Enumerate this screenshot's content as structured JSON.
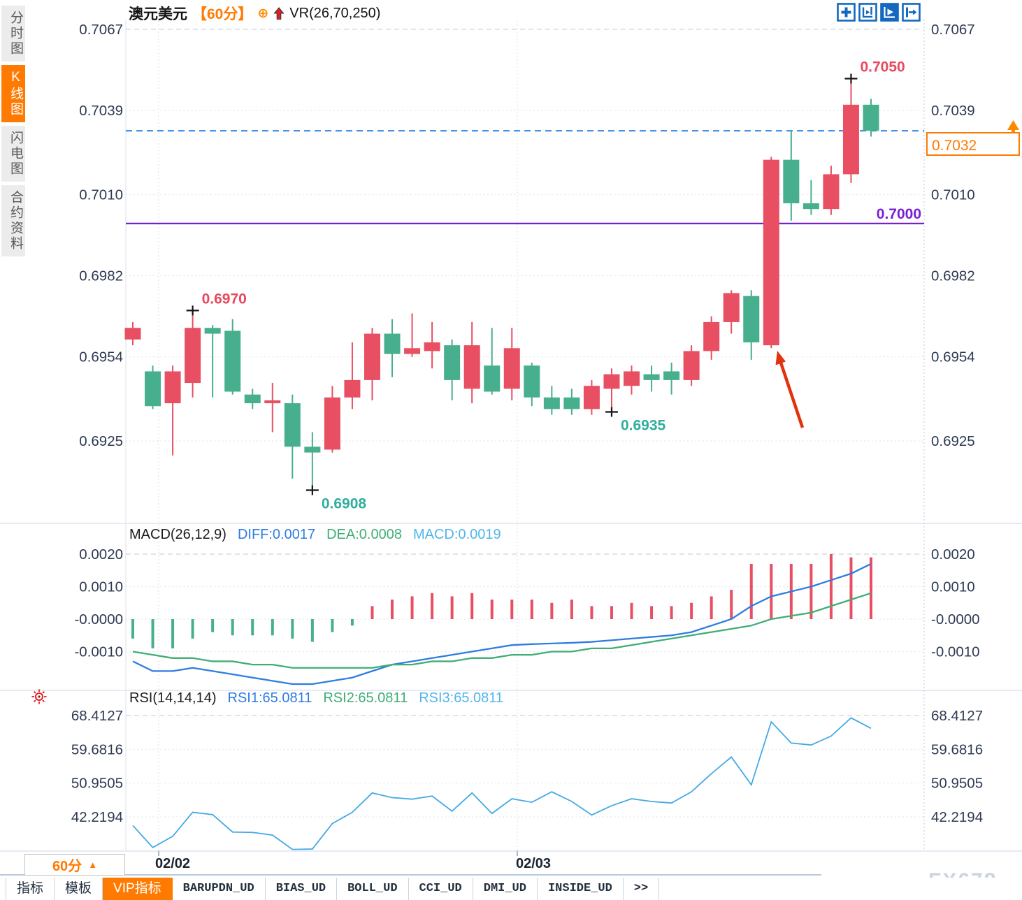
{
  "sidebar": {
    "tabs": [
      {
        "label": "分时图",
        "active": false
      },
      {
        "label": "K线图",
        "active": true
      },
      {
        "label": "闪电图",
        "active": false
      },
      {
        "label": "合约资料",
        "active": false
      }
    ]
  },
  "header": {
    "symbol": "澳元美元",
    "period": "【60分】",
    "plus_icon": "⊕",
    "indicator": "VR(26,70,250)"
  },
  "toolbar": {
    "icons": [
      "move-icon",
      "fit-scale-icon",
      "auto-scale-icon",
      "goto-latest-icon"
    ]
  },
  "colors": {
    "up_candle": "#e84f63",
    "down_candle": "#47af8d",
    "accent_orange": "#ff7a00",
    "support_purple": "#7a1fd0",
    "current_price_blue": "#1e7ae0",
    "diff_blue": "#2e7de0",
    "dea_green": "#3fae75",
    "macd_cyan": "#52b5ea",
    "rsi_line_blue": "#45a9e3",
    "axis_text": "#2e3a52",
    "annotation_red": "#e8495e",
    "annotation_teal": "#2fae9b",
    "arrow_red": "#e0330e"
  },
  "chart_data": {
    "type": "candlestick",
    "title": "澳元美元",
    "interval": "60分",
    "main": {
      "ylabels": [
        "0.7067",
        "0.7039",
        "0.7010",
        "0.6982",
        "0.6954",
        "0.6925"
      ],
      "yvalues": [
        0.7067,
        0.7039,
        0.701,
        0.6982,
        0.6954,
        0.6925
      ],
      "candles": [
        [
          0.696,
          0.6966,
          0.6958,
          0.6964
        ],
        [
          0.6949,
          0.6951,
          0.6936,
          0.6937
        ],
        [
          0.6938,
          0.6951,
          0.692,
          0.6949
        ],
        [
          0.6945,
          0.697,
          0.694,
          0.6964
        ],
        [
          0.6964,
          0.6965,
          0.694,
          0.6962
        ],
        [
          0.6963,
          0.6967,
          0.6941,
          0.6942
        ],
        [
          0.6941,
          0.6943,
          0.6936,
          0.6938
        ],
        [
          0.6938,
          0.6945,
          0.6928,
          0.6939
        ],
        [
          0.6938,
          0.6941,
          0.6912,
          0.6923
        ],
        [
          0.6923,
          0.6928,
          0.6908,
          0.6921
        ],
        [
          0.6922,
          0.6944,
          0.6921,
          0.694
        ],
        [
          0.694,
          0.6959,
          0.6936,
          0.6946
        ],
        [
          0.6946,
          0.6964,
          0.6939,
          0.6962
        ],
        [
          0.6962,
          0.6967,
          0.6947,
          0.6955
        ],
        [
          0.6955,
          0.6969,
          0.6954,
          0.6957
        ],
        [
          0.6956,
          0.6966,
          0.695,
          0.6959
        ],
        [
          0.6958,
          0.696,
          0.6939,
          0.6946
        ],
        [
          0.6943,
          0.6966,
          0.6938,
          0.6958
        ],
        [
          0.6951,
          0.6964,
          0.6941,
          0.6942
        ],
        [
          0.6943,
          0.6964,
          0.6939,
          0.6957
        ],
        [
          0.6951,
          0.6952,
          0.6937,
          0.694
        ],
        [
          0.694,
          0.6944,
          0.6934,
          0.6936
        ],
        [
          0.694,
          0.6943,
          0.6934,
          0.6936
        ],
        [
          0.6936,
          0.6946,
          0.6934,
          0.6944
        ],
        [
          0.6943,
          0.695,
          0.6935,
          0.6948
        ],
        [
          0.6944,
          0.6951,
          0.6941,
          0.6949
        ],
        [
          0.6948,
          0.6951,
          0.6942,
          0.6946
        ],
        [
          0.6949,
          0.6952,
          0.6941,
          0.6946
        ],
        [
          0.6946,
          0.6958,
          0.6944,
          0.6956
        ],
        [
          0.6956,
          0.6968,
          0.6953,
          0.6966
        ],
        [
          0.6966,
          0.6977,
          0.6962,
          0.6976
        ],
        [
          0.6975,
          0.6977,
          0.6953,
          0.6959
        ],
        [
          0.6958,
          0.7023,
          0.6957,
          0.7022
        ],
        [
          0.7022,
          0.7032,
          0.7001,
          0.7007
        ],
        [
          0.7007,
          0.7015,
          0.7003,
          0.7005
        ],
        [
          0.7005,
          0.702,
          0.7003,
          0.7017
        ],
        [
          0.7017,
          0.705,
          0.7014,
          0.7041
        ],
        [
          0.7041,
          0.7043,
          0.703,
          0.7032
        ]
      ],
      "current_price": 0.7032,
      "current_price_label": "0.7032",
      "support_line": {
        "value": 0.7,
        "label": "0.7000"
      },
      "swing_labels": [
        {
          "index": 3,
          "type": "high",
          "price": 0.697,
          "label": "0.6970"
        },
        {
          "index": 9,
          "type": "low",
          "price": 0.6908,
          "label": "0.6908"
        },
        {
          "index": 24,
          "type": "low",
          "price": 0.6935,
          "label": "0.6935"
        },
        {
          "index": 36,
          "type": "high",
          "price": 0.705,
          "label": "0.7050"
        }
      ]
    },
    "macd": {
      "title": "MACD(26,12,9)",
      "readouts": [
        "DIFF:0.0017",
        "DEA:0.0008",
        "MACD:0.0019"
      ],
      "ylabels": [
        "0.0020",
        "0.0010",
        "-0.0000",
        "-0.0010"
      ],
      "yvalues": [
        0.002,
        0.001,
        0.0,
        -0.001
      ],
      "hist": [
        -0.0006,
        -0.0009,
        -0.0009,
        -0.0006,
        -0.0004,
        -0.0005,
        -0.0005,
        -0.0005,
        -0.0006,
        -0.0007,
        -0.0004,
        -0.0002,
        0.0004,
        0.0006,
        0.0007,
        0.0008,
        0.0007,
        0.0008,
        0.0006,
        0.0006,
        0.0006,
        0.0005,
        0.0006,
        0.0004,
        0.0004,
        0.0005,
        0.0004,
        0.0004,
        0.0005,
        0.0007,
        0.0009,
        0.0017,
        0.0017,
        0.0017,
        0.0017,
        0.002,
        0.0019,
        0.0019
      ],
      "diff": [
        -0.0013,
        -0.0016,
        -0.0016,
        -0.0015,
        -0.0016,
        -0.0017,
        -0.0018,
        -0.0019,
        -0.002,
        -0.002,
        -0.0019,
        -0.0018,
        -0.0016,
        -0.0014,
        -0.0013,
        -0.0012,
        -0.0011,
        -0.001,
        -0.0009,
        -0.0008,
        -0.00077,
        -0.00075,
        -0.00073,
        -0.0007,
        -0.00065,
        -0.0006,
        -0.00055,
        -0.0005,
        -0.0004,
        -0.0002,
        0.0,
        0.0004,
        0.0007,
        0.00085,
        0.001,
        0.0012,
        0.0014,
        0.0017
      ],
      "dea": [
        -0.001,
        -0.0011,
        -0.0012,
        -0.0012,
        -0.0013,
        -0.0013,
        -0.0014,
        -0.0014,
        -0.0015,
        -0.0015,
        -0.0015,
        -0.0015,
        -0.0015,
        -0.0014,
        -0.0014,
        -0.0013,
        -0.0013,
        -0.0012,
        -0.0012,
        -0.0011,
        -0.0011,
        -0.001,
        -0.001,
        -0.0009,
        -0.0009,
        -0.0008,
        -0.0007,
        -0.0006,
        -0.0005,
        -0.0004,
        -0.0003,
        -0.0002,
        0.0,
        0.0001,
        0.0002,
        0.0004,
        0.0006,
        0.0008
      ]
    },
    "rsi": {
      "title": "RSI(14,14,14)",
      "readouts": [
        "RSI1:65.0811",
        "RSI2:65.0811",
        "RSI3:65.0811"
      ],
      "ylabels": [
        "68.4127",
        "59.6816",
        "50.9505",
        "42.2194"
      ],
      "yvalues": [
        68.4127,
        59.6816,
        50.9505,
        42.2194
      ],
      "values": [
        40.0,
        34.3,
        37.2,
        43.4,
        42.8,
        38.3,
        38.2,
        37.5,
        33.8,
        33.9,
        40.5,
        43.4,
        48.4,
        47.2,
        46.8,
        47.6,
        43.7,
        48.4,
        43.1,
        46.9,
        46.0,
        48.7,
        46.2,
        42.7,
        45.1,
        46.9,
        46.2,
        45.8,
        48.7,
        53.4,
        57.7,
        50.5,
        66.8,
        61.3,
        60.8,
        63.1,
        67.8,
        65.1
      ]
    },
    "timeline": [
      "02/02",
      "02/03"
    ]
  },
  "footer": {
    "period": "60分",
    "period_arrow": "▲",
    "tabs": [
      {
        "label": "指标",
        "active": false,
        "mono": false
      },
      {
        "label": "模板",
        "active": false,
        "mono": false
      },
      {
        "label": "VIP指标",
        "active": true,
        "mono": false
      },
      {
        "label": "BARUPDN_UD",
        "active": false,
        "mono": true
      },
      {
        "label": "BIAS_UD",
        "active": false,
        "mono": true
      },
      {
        "label": "BOLL_UD",
        "active": false,
        "mono": true
      },
      {
        "label": "CCI_UD",
        "active": false,
        "mono": true
      },
      {
        "label": "DMI_UD",
        "active": false,
        "mono": true
      },
      {
        "label": "INSIDE_UD",
        "active": false,
        "mono": true
      },
      {
        "label": ">>",
        "active": false,
        "mono": true
      }
    ],
    "watermark": "FX678"
  }
}
